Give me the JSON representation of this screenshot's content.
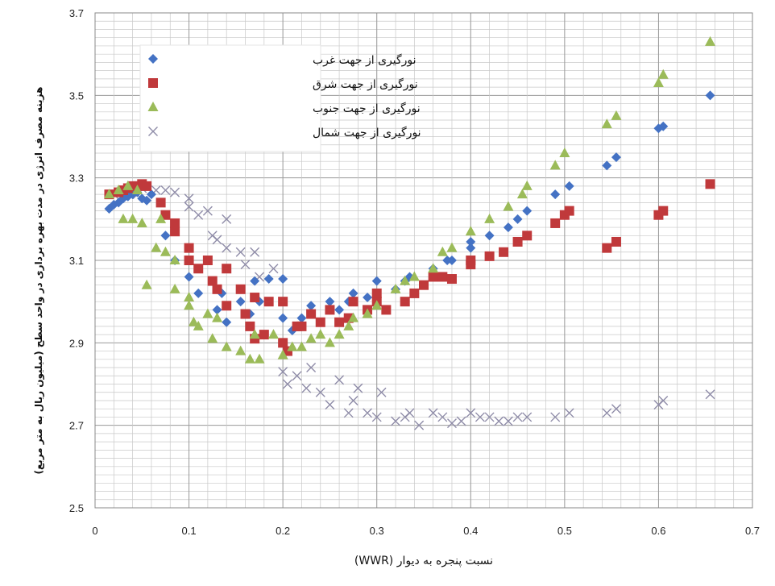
{
  "chart_data": {
    "type": "scatter",
    "xlabel": "(WWR) نسبت پنجره به دیوار",
    "ylabel": "هزینه مصرف انرژی در مدت بهره برداری در واحد سطح (میلیون ریال به متر مربع)",
    "xlim": [
      0,
      0.7
    ],
    "ylim": [
      2.5,
      3.7
    ],
    "xticks": [
      "0",
      "0.1",
      "0.2",
      "0.3",
      "0.4",
      "0.5",
      "0.6",
      "0.7"
    ],
    "yticks": [
      "2.5",
      "2.7",
      "2.9",
      "3.1",
      "3.3",
      "3.5",
      "3.7"
    ],
    "grid": true,
    "legend_position": "top-left",
    "series": [
      {
        "name": "نورگیری از جهت غرب",
        "marker": "diamond",
        "color": "#4472C4",
        "points": [
          [
            0.015,
            3.225
          ],
          [
            0.02,
            3.235
          ],
          [
            0.025,
            3.24
          ],
          [
            0.03,
            3.25
          ],
          [
            0.035,
            3.255
          ],
          [
            0.04,
            3.26
          ],
          [
            0.045,
            3.265
          ],
          [
            0.05,
            3.25
          ],
          [
            0.055,
            3.245
          ],
          [
            0.06,
            3.26
          ],
          [
            0.075,
            3.16
          ],
          [
            0.085,
            3.1
          ],
          [
            0.1,
            3.06
          ],
          [
            0.11,
            3.02
          ],
          [
            0.13,
            2.98
          ],
          [
            0.135,
            3.02
          ],
          [
            0.14,
            2.95
          ],
          [
            0.155,
            3.0
          ],
          [
            0.165,
            2.97
          ],
          [
            0.17,
            3.05
          ],
          [
            0.175,
            3.0
          ],
          [
            0.185,
            3.055
          ],
          [
            0.2,
            3.055
          ],
          [
            0.2,
            2.96
          ],
          [
            0.21,
            2.93
          ],
          [
            0.22,
            2.96
          ],
          [
            0.23,
            2.99
          ],
          [
            0.25,
            3.0
          ],
          [
            0.26,
            2.98
          ],
          [
            0.27,
            3.0
          ],
          [
            0.275,
            3.02
          ],
          [
            0.29,
            3.01
          ],
          [
            0.3,
            3.05
          ],
          [
            0.32,
            3.03
          ],
          [
            0.33,
            3.05
          ],
          [
            0.335,
            3.06
          ],
          [
            0.36,
            3.08
          ],
          [
            0.375,
            3.1
          ],
          [
            0.38,
            3.1
          ],
          [
            0.4,
            3.13
          ],
          [
            0.4,
            3.145
          ],
          [
            0.42,
            3.16
          ],
          [
            0.44,
            3.18
          ],
          [
            0.45,
            3.2
          ],
          [
            0.46,
            3.22
          ],
          [
            0.49,
            3.26
          ],
          [
            0.505,
            3.28
          ],
          [
            0.545,
            3.33
          ],
          [
            0.555,
            3.35
          ],
          [
            0.6,
            3.42
          ],
          [
            0.605,
            3.425
          ],
          [
            0.655,
            3.5
          ]
        ]
      },
      {
        "name": "نورگیری از جهت شرق",
        "marker": "square",
        "color": "#C0393B",
        "points": [
          [
            0.015,
            3.26
          ],
          [
            0.025,
            3.265
          ],
          [
            0.03,
            3.27
          ],
          [
            0.035,
            3.275
          ],
          [
            0.04,
            3.28
          ],
          [
            0.045,
            3.28
          ],
          [
            0.05,
            3.285
          ],
          [
            0.055,
            3.28
          ],
          [
            0.07,
            3.24
          ],
          [
            0.075,
            3.21
          ],
          [
            0.085,
            3.19
          ],
          [
            0.085,
            3.17
          ],
          [
            0.1,
            3.13
          ],
          [
            0.1,
            3.1
          ],
          [
            0.11,
            3.08
          ],
          [
            0.12,
            3.1
          ],
          [
            0.125,
            3.05
          ],
          [
            0.13,
            3.03
          ],
          [
            0.14,
            3.08
          ],
          [
            0.14,
            2.99
          ],
          [
            0.155,
            3.03
          ],
          [
            0.16,
            2.97
          ],
          [
            0.165,
            2.94
          ],
          [
            0.17,
            2.91
          ],
          [
            0.17,
            3.01
          ],
          [
            0.18,
            2.92
          ],
          [
            0.185,
            3.0
          ],
          [
            0.2,
            3.0
          ],
          [
            0.2,
            2.9
          ],
          [
            0.205,
            2.88
          ],
          [
            0.215,
            2.94
          ],
          [
            0.22,
            2.94
          ],
          [
            0.23,
            2.97
          ],
          [
            0.24,
            2.95
          ],
          [
            0.25,
            2.98
          ],
          [
            0.26,
            2.95
          ],
          [
            0.27,
            2.96
          ],
          [
            0.275,
            3.0
          ],
          [
            0.29,
            2.98
          ],
          [
            0.3,
            3.0
          ],
          [
            0.3,
            3.02
          ],
          [
            0.31,
            2.98
          ],
          [
            0.33,
            3.0
          ],
          [
            0.34,
            3.02
          ],
          [
            0.35,
            3.04
          ],
          [
            0.36,
            3.06
          ],
          [
            0.37,
            3.06
          ],
          [
            0.38,
            3.055
          ],
          [
            0.4,
            3.09
          ],
          [
            0.4,
            3.1
          ],
          [
            0.42,
            3.11
          ],
          [
            0.435,
            3.12
          ],
          [
            0.45,
            3.145
          ],
          [
            0.46,
            3.16
          ],
          [
            0.49,
            3.19
          ],
          [
            0.5,
            3.21
          ],
          [
            0.505,
            3.22
          ],
          [
            0.545,
            3.13
          ],
          [
            0.555,
            3.145
          ],
          [
            0.6,
            3.21
          ],
          [
            0.605,
            3.22
          ],
          [
            0.655,
            3.285
          ]
        ]
      },
      {
        "name": "نورگیری از جهت جنوب",
        "marker": "triangle",
        "color": "#9BBB59",
        "points": [
          [
            0.015,
            3.26
          ],
          [
            0.025,
            3.27
          ],
          [
            0.035,
            3.28
          ],
          [
            0.045,
            3.27
          ],
          [
            0.03,
            3.2
          ],
          [
            0.04,
            3.2
          ],
          [
            0.05,
            3.19
          ],
          [
            0.055,
            3.04
          ],
          [
            0.065,
            3.13
          ],
          [
            0.07,
            3.2
          ],
          [
            0.075,
            3.12
          ],
          [
            0.085,
            3.1
          ],
          [
            0.085,
            3.03
          ],
          [
            0.1,
            2.99
          ],
          [
            0.1,
            3.01
          ],
          [
            0.105,
            2.95
          ],
          [
            0.11,
            2.94
          ],
          [
            0.12,
            2.97
          ],
          [
            0.125,
            2.91
          ],
          [
            0.13,
            2.96
          ],
          [
            0.14,
            2.89
          ],
          [
            0.155,
            2.88
          ],
          [
            0.165,
            2.86
          ],
          [
            0.17,
            2.92
          ],
          [
            0.175,
            2.86
          ],
          [
            0.19,
            2.92
          ],
          [
            0.2,
            2.87
          ],
          [
            0.21,
            2.89
          ],
          [
            0.22,
            2.89
          ],
          [
            0.23,
            2.91
          ],
          [
            0.24,
            2.92
          ],
          [
            0.25,
            2.9
          ],
          [
            0.26,
            2.92
          ],
          [
            0.27,
            2.94
          ],
          [
            0.275,
            2.96
          ],
          [
            0.29,
            2.97
          ],
          [
            0.3,
            2.99
          ],
          [
            0.32,
            3.03
          ],
          [
            0.33,
            3.05
          ],
          [
            0.34,
            3.06
          ],
          [
            0.36,
            3.08
          ],
          [
            0.37,
            3.12
          ],
          [
            0.38,
            3.13
          ],
          [
            0.4,
            3.17
          ],
          [
            0.42,
            3.2
          ],
          [
            0.44,
            3.23
          ],
          [
            0.455,
            3.26
          ],
          [
            0.46,
            3.28
          ],
          [
            0.49,
            3.33
          ],
          [
            0.5,
            3.36
          ],
          [
            0.545,
            3.43
          ],
          [
            0.555,
            3.45
          ],
          [
            0.6,
            3.53
          ],
          [
            0.605,
            3.55
          ],
          [
            0.655,
            3.63
          ]
        ]
      },
      {
        "name": "نورگیری از جهت شمال",
        "marker": "x",
        "color": "#8F8CA8",
        "points": [
          [
            0.02,
            3.26
          ],
          [
            0.035,
            3.27
          ],
          [
            0.045,
            3.26
          ],
          [
            0.05,
            3.275
          ],
          [
            0.065,
            3.27
          ],
          [
            0.075,
            3.27
          ],
          [
            0.085,
            3.265
          ],
          [
            0.1,
            3.25
          ],
          [
            0.1,
            3.23
          ],
          [
            0.11,
            3.21
          ],
          [
            0.12,
            3.22
          ],
          [
            0.125,
            3.16
          ],
          [
            0.13,
            3.15
          ],
          [
            0.14,
            3.2
          ],
          [
            0.14,
            3.13
          ],
          [
            0.155,
            3.12
          ],
          [
            0.16,
            3.09
          ],
          [
            0.17,
            3.12
          ],
          [
            0.175,
            3.06
          ],
          [
            0.19,
            3.08
          ],
          [
            0.2,
            2.83
          ],
          [
            0.205,
            2.8
          ],
          [
            0.215,
            2.82
          ],
          [
            0.225,
            2.79
          ],
          [
            0.23,
            2.84
          ],
          [
            0.24,
            2.78
          ],
          [
            0.25,
            2.75
          ],
          [
            0.26,
            2.81
          ],
          [
            0.27,
            2.73
          ],
          [
            0.275,
            2.76
          ],
          [
            0.28,
            2.79
          ],
          [
            0.29,
            2.73
          ],
          [
            0.3,
            2.72
          ],
          [
            0.305,
            2.78
          ],
          [
            0.32,
            2.71
          ],
          [
            0.33,
            2.72
          ],
          [
            0.335,
            2.73
          ],
          [
            0.345,
            2.7
          ],
          [
            0.36,
            2.73
          ],
          [
            0.37,
            2.72
          ],
          [
            0.38,
            2.705
          ],
          [
            0.39,
            2.71
          ],
          [
            0.4,
            2.73
          ],
          [
            0.41,
            2.72
          ],
          [
            0.42,
            2.72
          ],
          [
            0.43,
            2.71
          ],
          [
            0.44,
            2.71
          ],
          [
            0.45,
            2.72
          ],
          [
            0.46,
            2.72
          ],
          [
            0.49,
            2.72
          ],
          [
            0.505,
            2.73
          ],
          [
            0.545,
            2.73
          ],
          [
            0.555,
            2.74
          ],
          [
            0.6,
            2.75
          ],
          [
            0.605,
            2.76
          ],
          [
            0.655,
            2.775
          ]
        ]
      }
    ]
  }
}
